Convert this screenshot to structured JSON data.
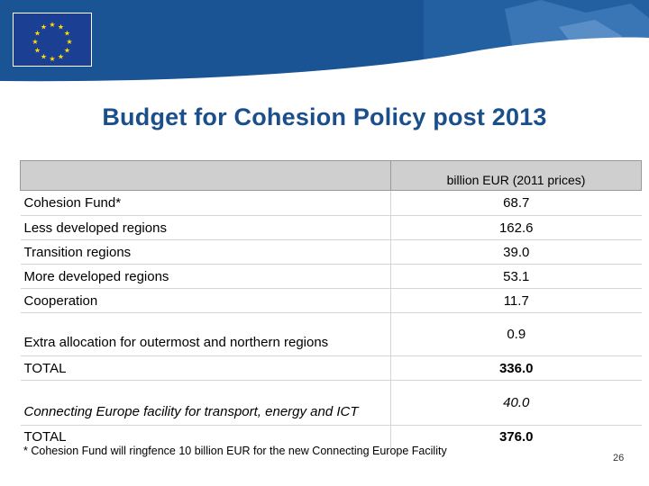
{
  "title": "Budget for Cohesion Policy post 2013",
  "table": {
    "header": "billion EUR (2011 prices)",
    "rows": [
      {
        "label": "Cohesion Fund*",
        "value": "68.7"
      },
      {
        "label": "Less developed regions",
        "value": "162.6"
      },
      {
        "label": "Transition regions",
        "value": "39.0"
      },
      {
        "label": "More developed regions",
        "value": "53.1"
      },
      {
        "label": "Cooperation",
        "value": "11.7"
      },
      {
        "label": "Extra allocation for outermost and northern regions",
        "value": "0.9"
      },
      {
        "label": "TOTAL",
        "value": "336.0"
      },
      {
        "label": "Connecting Europe facility for transport, energy and ICT",
        "value": "40.0"
      },
      {
        "label": "TOTAL",
        "value": "376.0"
      }
    ]
  },
  "footnote": "* Cohesion Fund will ringfence 10 billion EUR for the new Connecting Europe Facility",
  "page_number": "26",
  "colors": {
    "header_blue": "#1a5494",
    "title_blue": "#1a4f8c",
    "flag_blue": "#1b3f93",
    "star_yellow": "#ffdd00"
  }
}
